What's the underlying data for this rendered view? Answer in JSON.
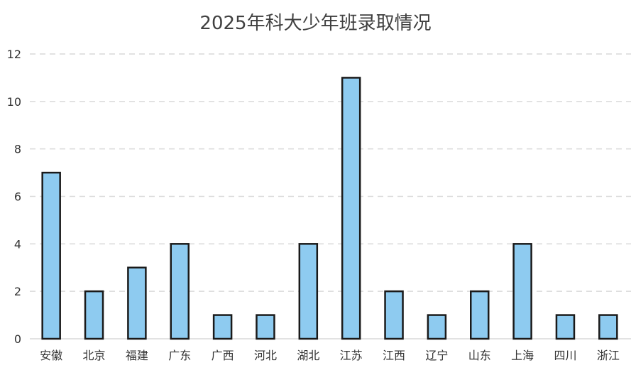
{
  "chart_data": {
    "type": "bar",
    "title": "2025年科大少年班录取情况",
    "xlabel": "",
    "ylabel": "",
    "categories": [
      "安徽",
      "北京",
      "福建",
      "广东",
      "广西",
      "河北",
      "湖北",
      "江苏",
      "江西",
      "辽宁",
      "山东",
      "上海",
      "四川",
      "浙江"
    ],
    "values": [
      7,
      2,
      3,
      4,
      1,
      1,
      4,
      11,
      2,
      1,
      2,
      4,
      1,
      1
    ],
    "ylim": [
      0,
      12
    ],
    "yticks": [
      0,
      2,
      4,
      6,
      8,
      10,
      12
    ],
    "grid": true,
    "legend": "none",
    "bar_color": "#8ecbf0",
    "bar_edge_color": "#1a1a1a",
    "grid_color": "#d9d9d9"
  }
}
